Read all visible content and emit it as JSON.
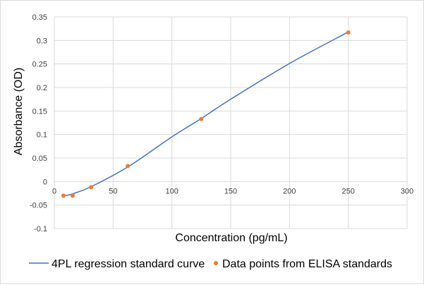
{
  "chart_data": {
    "type": "scatter",
    "title": "",
    "xlabel": "Concentration (pg/mL)",
    "ylabel": "Absorbance (OD)",
    "xlim": [
      0,
      300
    ],
    "ylim": [
      -0.1,
      0.35
    ],
    "x_ticks": [
      0,
      50,
      100,
      150,
      200,
      250,
      300
    ],
    "y_ticks": [
      -0.1,
      -0.05,
      0,
      0.05,
      0.1,
      0.15,
      0.2,
      0.25,
      0.3,
      0.35
    ],
    "x_tick_labels": [
      "0",
      "50",
      "100",
      "150",
      "200",
      "250",
      "300"
    ],
    "y_tick_labels": [
      "-0.1",
      "-0.05",
      "0",
      "0.05",
      "0.1",
      "0.15",
      "0.2",
      "0.25",
      "0.3",
      "0.35"
    ],
    "grid": true,
    "legend_position": "bottom",
    "series": [
      {
        "name": "4PL regression standard curve",
        "kind": "line",
        "color": "#4472C4",
        "x": [
          7.8,
          15.6,
          31.25,
          62.5,
          100,
          125,
          150,
          200,
          250
        ],
        "y": [
          -0.031,
          -0.026,
          -0.011,
          0.031,
          0.095,
          0.134,
          0.175,
          0.251,
          0.318
        ]
      },
      {
        "name": "Data points from ELISA standards",
        "kind": "scatter",
        "color": "#ED7D31",
        "x": [
          7.8,
          15.6,
          31.25,
          62.5,
          125,
          250
        ],
        "y": [
          -0.03,
          -0.03,
          -0.012,
          0.033,
          0.133,
          0.317
        ]
      }
    ]
  }
}
